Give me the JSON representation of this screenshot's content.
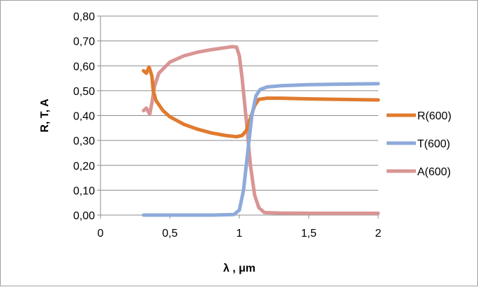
{
  "chart_data": {
    "type": "line",
    "title": "",
    "xlabel": "λ , μm",
    "ylabel": "R, T, A",
    "xlim": [
      0,
      2
    ],
    "ylim": [
      0,
      0.8
    ],
    "x_ticks": [
      0,
      0.5,
      1,
      1.5,
      2
    ],
    "x_tick_labels": [
      "0",
      "0,5",
      "1",
      "1,5",
      "2"
    ],
    "y_ticks": [
      0,
      0.1,
      0.2,
      0.3,
      0.4,
      0.5,
      0.6,
      0.7,
      0.8
    ],
    "y_tick_labels": [
      "0,00",
      "0,10",
      "0,20",
      "0,30",
      "0,40",
      "0,50",
      "0,60",
      "0,70",
      "0,80"
    ],
    "grid": "horizontal",
    "legend_position": "right",
    "series": [
      {
        "name": "R(600)",
        "color": "#e07b2e",
        "points": [
          [
            0.31,
            0.58
          ],
          [
            0.33,
            0.57
          ],
          [
            0.35,
            0.595
          ],
          [
            0.37,
            0.56
          ],
          [
            0.38,
            0.5
          ],
          [
            0.4,
            0.46
          ],
          [
            0.45,
            0.42
          ],
          [
            0.5,
            0.395
          ],
          [
            0.55,
            0.38
          ],
          [
            0.6,
            0.365
          ],
          [
            0.7,
            0.345
          ],
          [
            0.8,
            0.33
          ],
          [
            0.9,
            0.32
          ],
          [
            0.98,
            0.315
          ],
          [
            1.02,
            0.32
          ],
          [
            1.05,
            0.34
          ],
          [
            1.08,
            0.39
          ],
          [
            1.11,
            0.44
          ],
          [
            1.14,
            0.465
          ],
          [
            1.2,
            0.47
          ],
          [
            1.3,
            0.47
          ],
          [
            1.5,
            0.467
          ],
          [
            1.7,
            0.465
          ],
          [
            2.0,
            0.463
          ]
        ]
      },
      {
        "name": "T(600)",
        "color": "#8eaadb",
        "points": [
          [
            0.31,
            0.0
          ],
          [
            0.5,
            0.0
          ],
          [
            0.8,
            0.0
          ],
          [
            0.96,
            0.002
          ],
          [
            1.0,
            0.02
          ],
          [
            1.03,
            0.1
          ],
          [
            1.06,
            0.25
          ],
          [
            1.09,
            0.4
          ],
          [
            1.12,
            0.48
          ],
          [
            1.15,
            0.505
          ],
          [
            1.2,
            0.515
          ],
          [
            1.3,
            0.52
          ],
          [
            1.5,
            0.524
          ],
          [
            1.7,
            0.526
          ],
          [
            2.0,
            0.528
          ]
        ]
      },
      {
        "name": "A(600)",
        "color": "#d99594",
        "points": [
          [
            0.31,
            0.42
          ],
          [
            0.33,
            0.43
          ],
          [
            0.355,
            0.405
          ],
          [
            0.37,
            0.45
          ],
          [
            0.39,
            0.52
          ],
          [
            0.42,
            0.57
          ],
          [
            0.5,
            0.615
          ],
          [
            0.6,
            0.64
          ],
          [
            0.7,
            0.655
          ],
          [
            0.8,
            0.665
          ],
          [
            0.9,
            0.673
          ],
          [
            0.95,
            0.677
          ],
          [
            0.98,
            0.675
          ],
          [
            1.0,
            0.64
          ],
          [
            1.02,
            0.55
          ],
          [
            1.05,
            0.38
          ],
          [
            1.08,
            0.2
          ],
          [
            1.11,
            0.08
          ],
          [
            1.14,
            0.03
          ],
          [
            1.18,
            0.01
          ],
          [
            1.3,
            0.008
          ],
          [
            1.6,
            0.007
          ],
          [
            2.0,
            0.007
          ]
        ]
      }
    ]
  }
}
